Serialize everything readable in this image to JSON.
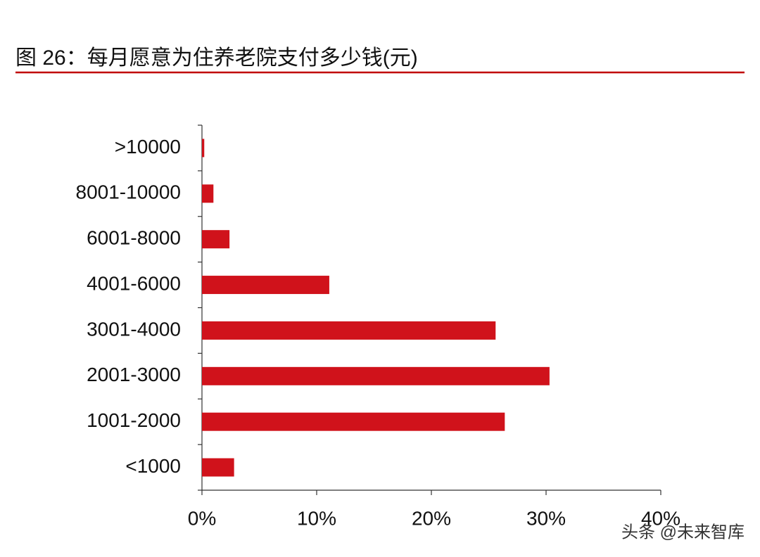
{
  "chart_data": {
    "type": "hbar",
    "title": "图 26：每月愿意为住养老院支付多少钱(元)",
    "categories": [
      ">10000",
      "8001-10000",
      "6001-8000",
      "4001-6000",
      "3001-4000",
      "2001-3000",
      "1001-2000",
      "<1000"
    ],
    "values": [
      0.2,
      1.0,
      2.4,
      11.1,
      25.6,
      30.3,
      26.4,
      2.8
    ],
    "color": "#d0121b",
    "xlim": [
      0,
      40
    ],
    "xticks": [
      {
        "value": 0,
        "label": "0%"
      },
      {
        "value": 10,
        "label": "10%"
      },
      {
        "value": 20,
        "label": "20%"
      },
      {
        "value": 30,
        "label": "30%"
      },
      {
        "value": 40,
        "label": "40%"
      }
    ],
    "watermark": "头条 @未来智库"
  }
}
